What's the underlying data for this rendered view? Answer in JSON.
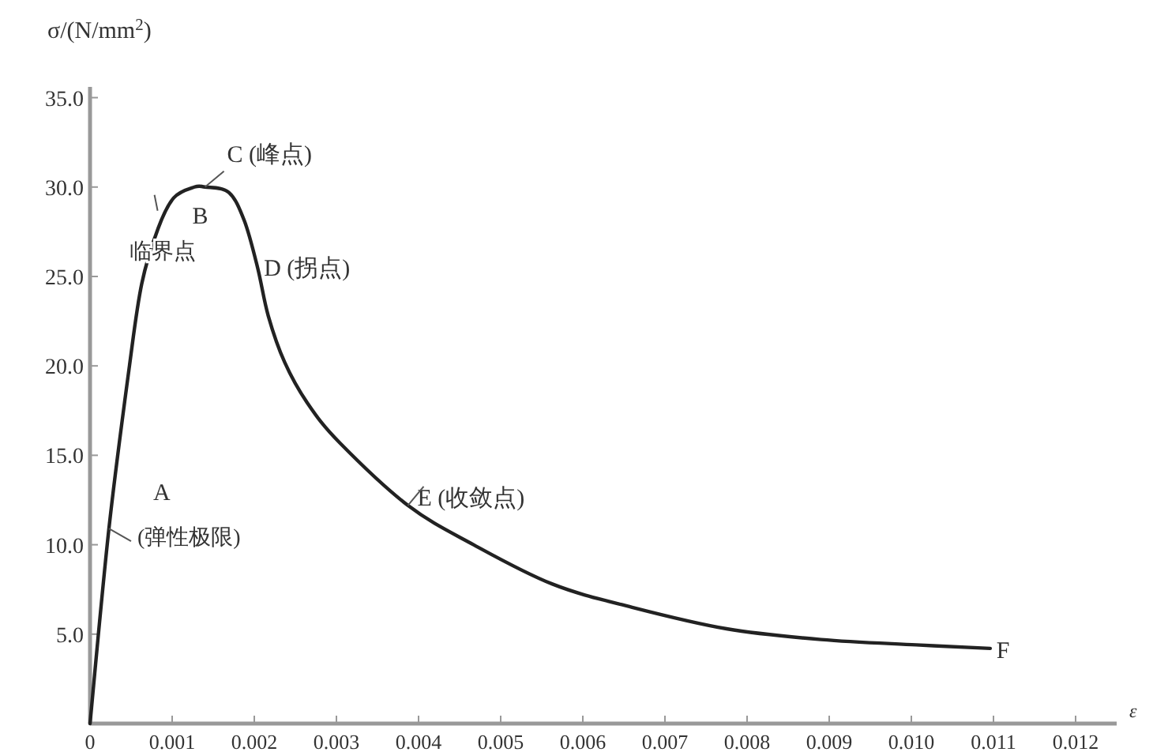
{
  "chart_data": {
    "type": "line",
    "ylabel": "σ/(N/mm$^{2}$)",
    "xlabel": "ε",
    "xlim": [
      0,
      0.0125
    ],
    "ylim": [
      0,
      35.6
    ],
    "xticks": [
      {
        "value": 0,
        "label": "0"
      },
      {
        "value": 0.001,
        "label": "0.001"
      },
      {
        "value": 0.002,
        "label": "0.002"
      },
      {
        "value": 0.003,
        "label": "0.003"
      },
      {
        "value": 0.004,
        "label": "0.004"
      },
      {
        "value": 0.005,
        "label": "0.005"
      },
      {
        "value": 0.006,
        "label": "0.006"
      },
      {
        "value": 0.007,
        "label": "0.007"
      },
      {
        "value": 0.008,
        "label": "0.008"
      },
      {
        "value": 0.009,
        "label": "0.009"
      },
      {
        "value": 0.01,
        "label": "0.010"
      },
      {
        "value": 0.011,
        "label": "0.011"
      },
      {
        "value": 0.012,
        "label": "0.012"
      }
    ],
    "yticks": [
      {
        "value": 5,
        "label": "5.0"
      },
      {
        "value": 10,
        "label": "10.0"
      },
      {
        "value": 15,
        "label": "15.0"
      },
      {
        "value": 20,
        "label": "20.0"
      },
      {
        "value": 25,
        "label": "25.0"
      },
      {
        "value": 30,
        "label": "30.0"
      },
      {
        "value": 35,
        "label": "35.0"
      }
    ],
    "series": [
      {
        "color": "#222222",
        "x": [
          0,
          0.00023,
          0.00048,
          0.00063,
          0.00083,
          0.00102,
          0.00127,
          0.0014,
          0.00169,
          0.00188,
          0.00204,
          0.00217,
          0.00237,
          0.00265,
          0.00304,
          0.00387,
          0.00467,
          0.00563,
          0.0066,
          0.00775,
          0.0089,
          0.01006,
          0.01096
        ],
        "values": [
          0,
          10.9,
          20.0,
          24.6,
          27.7,
          29.4,
          30.0,
          30.0,
          29.7,
          28.1,
          25.5,
          22.8,
          20.2,
          17.9,
          15.7,
          12.2,
          10.0,
          7.8,
          6.5,
          5.3,
          4.7,
          4.4,
          4.2
        ]
      }
    ],
    "marker": "none",
    "line_style": "solid",
    "grid": false,
    "annotations": [
      {
        "text": "A",
        "x": 0.00023,
        "y": 10.9
      },
      {
        "text": "(弹性极限)",
        "x": 0.00023,
        "y": 10.9
      },
      {
        "text": "B",
        "x": 0.0009,
        "y": 28.5
      },
      {
        "text": "临界点",
        "x": 0.0009,
        "y": 28.5
      },
      {
        "text": "C (峰点)",
        "x": 0.0014,
        "y": 30.0
      },
      {
        "text": "D (拐点)",
        "x": 0.00204,
        "y": 25.5
      },
      {
        "text": "E (收敛点)",
        "x": 0.00387,
        "y": 12.2
      },
      {
        "text": "F",
        "x": 0.01096,
        "y": 4.2
      }
    ]
  }
}
